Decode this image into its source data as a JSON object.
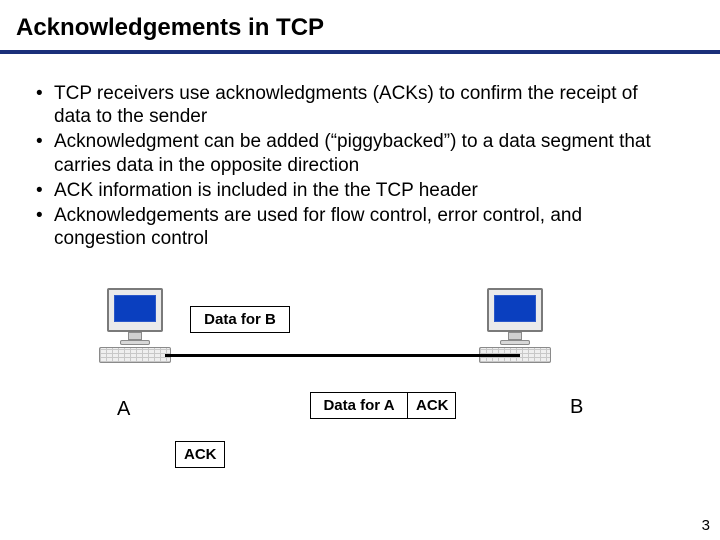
{
  "title": "Acknowledgements in TCP",
  "bullets": [
    "TCP receivers use acknowledgments (ACKs) to confirm the receipt of data to the sender",
    "Acknowledgment can be added (“piggybacked”) to a data segment that carries data in the opposite direction",
    "ACK information is included in the the TCP header",
    "Acknowledgements are used for flow control, error control, and congestion control"
  ],
  "diagram": {
    "host_a_label": "A",
    "host_b_label": "B",
    "box_top": "Data for B",
    "box_mid_left": "Data for A",
    "box_mid_right": "ACK",
    "box_bottom": "ACK",
    "type": "network",
    "monitor_screen_color": "#0a3fbf",
    "underline_color": "#1a2f7a",
    "background_color": "#ffffff"
  },
  "page_number": "3"
}
